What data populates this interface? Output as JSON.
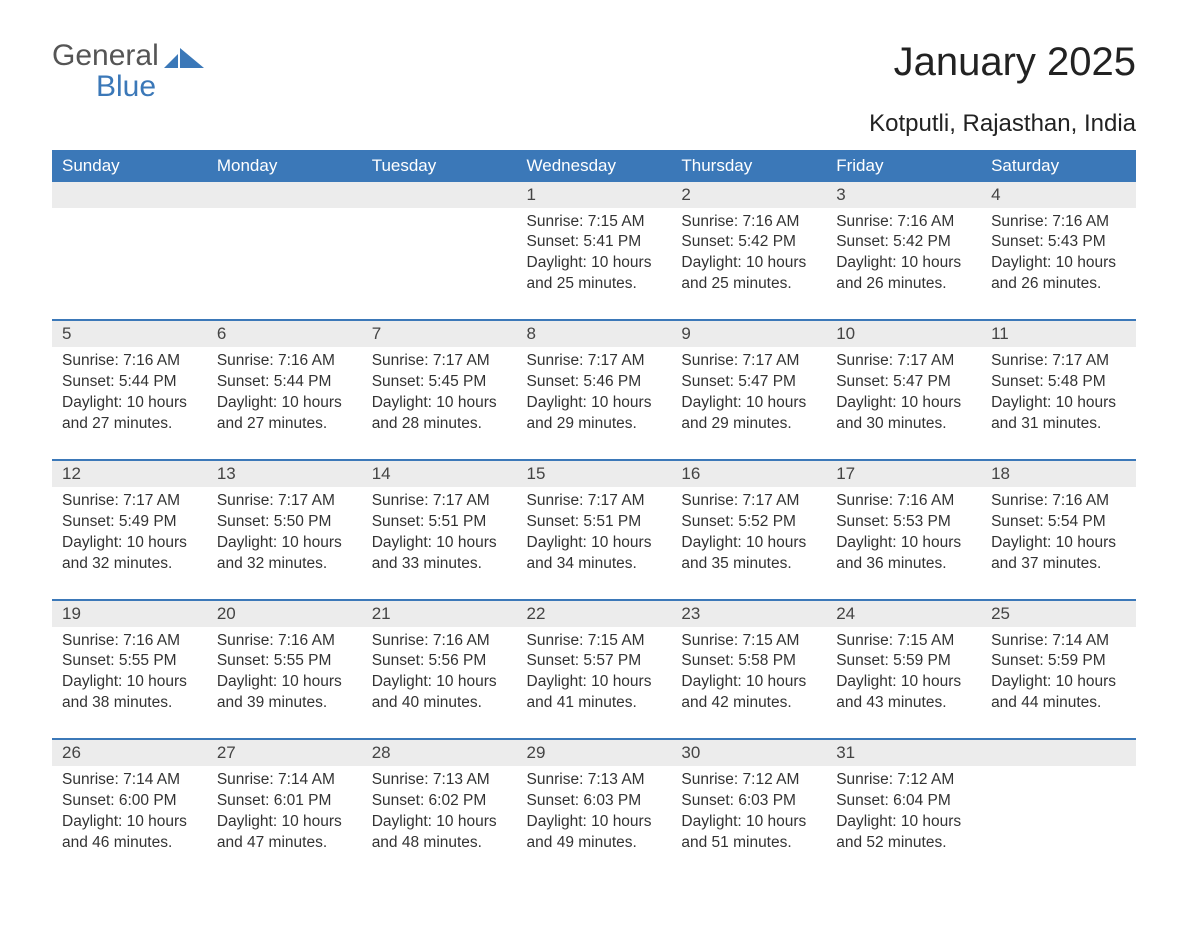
{
  "brand": {
    "part1": "General",
    "part2": "Blue",
    "text_color": "#555555",
    "accent_color": "#3b78b8"
  },
  "title": "January 2025",
  "location": "Kotputli, Rajasthan, India",
  "colors": {
    "header_bg": "#3b78b8",
    "header_text": "#ffffff",
    "daynum_bg": "#ececec",
    "daynum_border": "#3b78b8",
    "body_text": "#333333",
    "page_bg": "#ffffff"
  },
  "typography": {
    "title_fontsize": 40,
    "subtitle_fontsize": 24,
    "header_fontsize": 17,
    "cell_fontsize": 15.5
  },
  "daynames": [
    "Sunday",
    "Monday",
    "Tuesday",
    "Wednesday",
    "Thursday",
    "Friday",
    "Saturday"
  ],
  "weeks": [
    [
      null,
      null,
      null,
      {
        "n": "1",
        "sunrise": "Sunrise: 7:15 AM",
        "sunset": "Sunset: 5:41 PM",
        "day1": "Daylight: 10 hours",
        "day2": "and 25 minutes."
      },
      {
        "n": "2",
        "sunrise": "Sunrise: 7:16 AM",
        "sunset": "Sunset: 5:42 PM",
        "day1": "Daylight: 10 hours",
        "day2": "and 25 minutes."
      },
      {
        "n": "3",
        "sunrise": "Sunrise: 7:16 AM",
        "sunset": "Sunset: 5:42 PM",
        "day1": "Daylight: 10 hours",
        "day2": "and 26 minutes."
      },
      {
        "n": "4",
        "sunrise": "Sunrise: 7:16 AM",
        "sunset": "Sunset: 5:43 PM",
        "day1": "Daylight: 10 hours",
        "day2": "and 26 minutes."
      }
    ],
    [
      {
        "n": "5",
        "sunrise": "Sunrise: 7:16 AM",
        "sunset": "Sunset: 5:44 PM",
        "day1": "Daylight: 10 hours",
        "day2": "and 27 minutes."
      },
      {
        "n": "6",
        "sunrise": "Sunrise: 7:16 AM",
        "sunset": "Sunset: 5:44 PM",
        "day1": "Daylight: 10 hours",
        "day2": "and 27 minutes."
      },
      {
        "n": "7",
        "sunrise": "Sunrise: 7:17 AM",
        "sunset": "Sunset: 5:45 PM",
        "day1": "Daylight: 10 hours",
        "day2": "and 28 minutes."
      },
      {
        "n": "8",
        "sunrise": "Sunrise: 7:17 AM",
        "sunset": "Sunset: 5:46 PM",
        "day1": "Daylight: 10 hours",
        "day2": "and 29 minutes."
      },
      {
        "n": "9",
        "sunrise": "Sunrise: 7:17 AM",
        "sunset": "Sunset: 5:47 PM",
        "day1": "Daylight: 10 hours",
        "day2": "and 29 minutes."
      },
      {
        "n": "10",
        "sunrise": "Sunrise: 7:17 AM",
        "sunset": "Sunset: 5:47 PM",
        "day1": "Daylight: 10 hours",
        "day2": "and 30 minutes."
      },
      {
        "n": "11",
        "sunrise": "Sunrise: 7:17 AM",
        "sunset": "Sunset: 5:48 PM",
        "day1": "Daylight: 10 hours",
        "day2": "and 31 minutes."
      }
    ],
    [
      {
        "n": "12",
        "sunrise": "Sunrise: 7:17 AM",
        "sunset": "Sunset: 5:49 PM",
        "day1": "Daylight: 10 hours",
        "day2": "and 32 minutes."
      },
      {
        "n": "13",
        "sunrise": "Sunrise: 7:17 AM",
        "sunset": "Sunset: 5:50 PM",
        "day1": "Daylight: 10 hours",
        "day2": "and 32 minutes."
      },
      {
        "n": "14",
        "sunrise": "Sunrise: 7:17 AM",
        "sunset": "Sunset: 5:51 PM",
        "day1": "Daylight: 10 hours",
        "day2": "and 33 minutes."
      },
      {
        "n": "15",
        "sunrise": "Sunrise: 7:17 AM",
        "sunset": "Sunset: 5:51 PM",
        "day1": "Daylight: 10 hours",
        "day2": "and 34 minutes."
      },
      {
        "n": "16",
        "sunrise": "Sunrise: 7:17 AM",
        "sunset": "Sunset: 5:52 PM",
        "day1": "Daylight: 10 hours",
        "day2": "and 35 minutes."
      },
      {
        "n": "17",
        "sunrise": "Sunrise: 7:16 AM",
        "sunset": "Sunset: 5:53 PM",
        "day1": "Daylight: 10 hours",
        "day2": "and 36 minutes."
      },
      {
        "n": "18",
        "sunrise": "Sunrise: 7:16 AM",
        "sunset": "Sunset: 5:54 PM",
        "day1": "Daylight: 10 hours",
        "day2": "and 37 minutes."
      }
    ],
    [
      {
        "n": "19",
        "sunrise": "Sunrise: 7:16 AM",
        "sunset": "Sunset: 5:55 PM",
        "day1": "Daylight: 10 hours",
        "day2": "and 38 minutes."
      },
      {
        "n": "20",
        "sunrise": "Sunrise: 7:16 AM",
        "sunset": "Sunset: 5:55 PM",
        "day1": "Daylight: 10 hours",
        "day2": "and 39 minutes."
      },
      {
        "n": "21",
        "sunrise": "Sunrise: 7:16 AM",
        "sunset": "Sunset: 5:56 PM",
        "day1": "Daylight: 10 hours",
        "day2": "and 40 minutes."
      },
      {
        "n": "22",
        "sunrise": "Sunrise: 7:15 AM",
        "sunset": "Sunset: 5:57 PM",
        "day1": "Daylight: 10 hours",
        "day2": "and 41 minutes."
      },
      {
        "n": "23",
        "sunrise": "Sunrise: 7:15 AM",
        "sunset": "Sunset: 5:58 PM",
        "day1": "Daylight: 10 hours",
        "day2": "and 42 minutes."
      },
      {
        "n": "24",
        "sunrise": "Sunrise: 7:15 AM",
        "sunset": "Sunset: 5:59 PM",
        "day1": "Daylight: 10 hours",
        "day2": "and 43 minutes."
      },
      {
        "n": "25",
        "sunrise": "Sunrise: 7:14 AM",
        "sunset": "Sunset: 5:59 PM",
        "day1": "Daylight: 10 hours",
        "day2": "and 44 minutes."
      }
    ],
    [
      {
        "n": "26",
        "sunrise": "Sunrise: 7:14 AM",
        "sunset": "Sunset: 6:00 PM",
        "day1": "Daylight: 10 hours",
        "day2": "and 46 minutes."
      },
      {
        "n": "27",
        "sunrise": "Sunrise: 7:14 AM",
        "sunset": "Sunset: 6:01 PM",
        "day1": "Daylight: 10 hours",
        "day2": "and 47 minutes."
      },
      {
        "n": "28",
        "sunrise": "Sunrise: 7:13 AM",
        "sunset": "Sunset: 6:02 PM",
        "day1": "Daylight: 10 hours",
        "day2": "and 48 minutes."
      },
      {
        "n": "29",
        "sunrise": "Sunrise: 7:13 AM",
        "sunset": "Sunset: 6:03 PM",
        "day1": "Daylight: 10 hours",
        "day2": "and 49 minutes."
      },
      {
        "n": "30",
        "sunrise": "Sunrise: 7:12 AM",
        "sunset": "Sunset: 6:03 PM",
        "day1": "Daylight: 10 hours",
        "day2": "and 51 minutes."
      },
      {
        "n": "31",
        "sunrise": "Sunrise: 7:12 AM",
        "sunset": "Sunset: 6:04 PM",
        "day1": "Daylight: 10 hours",
        "day2": "and 52 minutes."
      },
      null
    ]
  ]
}
